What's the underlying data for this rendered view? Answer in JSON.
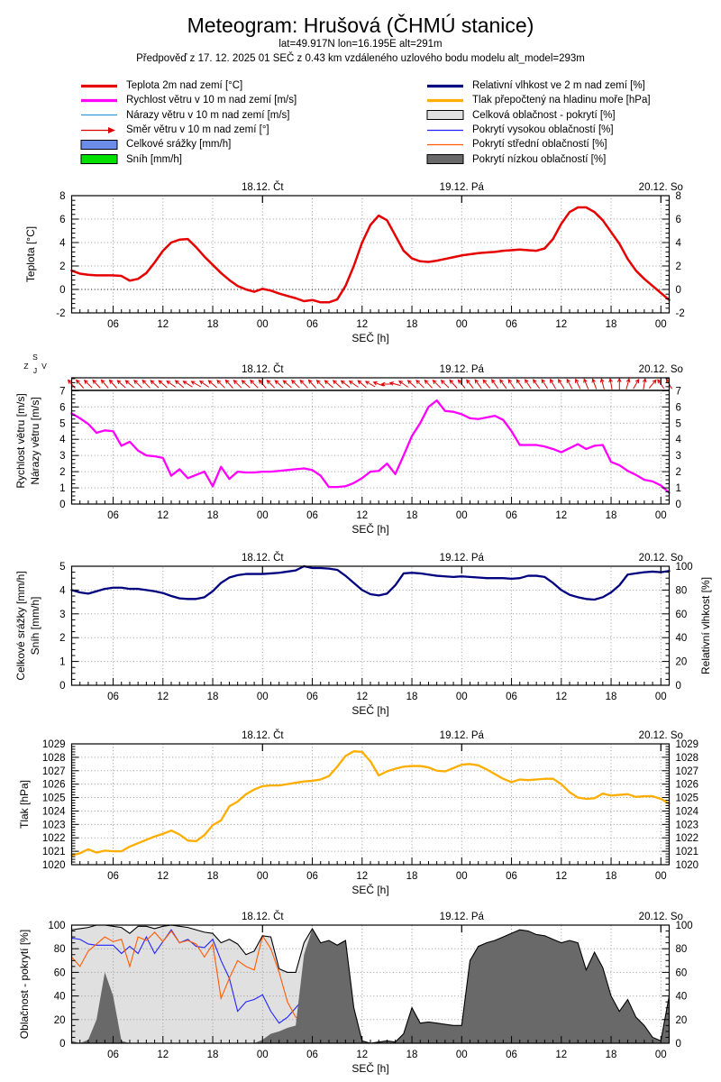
{
  "header": {
    "title": "Meteogram: Hrušová (ČHMÚ stanice)",
    "subtitle1": "lat=49.917N lon=16.195E alt=291m",
    "subtitle2": "Předpověď z 17. 12. 2025 01 SEČ z 0.43 km vzdáleného uzlového bodu modelu alt_model=293m"
  },
  "legend": {
    "left": [
      {
        "label": "Teplota 2m nad zemí [°C]",
        "swatch": "line",
        "color": "#e60000",
        "thick": true
      },
      {
        "label": "Rychlost větru v 10 m nad zemí [m/s]",
        "swatch": "line",
        "color": "#ff00ff",
        "thick": true
      },
      {
        "label": "Nárazy větru v 10 m nad zemí [m/s]",
        "swatch": "line",
        "color": "#3399dd",
        "thick": false
      },
      {
        "label": "Směr větru v 10 m nad zemí [°]",
        "swatch": "arrow",
        "color": "#dd0000"
      },
      {
        "label": "Celkové srážky [mm/h]",
        "swatch": "box",
        "color": "#6b8ce8"
      },
      {
        "label": "Sníh [mm/h]",
        "swatch": "box",
        "color": "#00e000"
      }
    ],
    "right": [
      {
        "label": "Relativní vlhkost ve 2 m nad zemí [%]",
        "swatch": "line",
        "color": "#000080",
        "thick": true
      },
      {
        "label": "Tlak přepočtený na hladinu moře [hPa]",
        "swatch": "line",
        "color": "#ffae00",
        "thick": true
      },
      {
        "label": "Celková oblačnost - pokrytí [%]",
        "swatch": "box",
        "color": "#e0e0e0"
      },
      {
        "label": "Pokrytí vysokou oblačností [%]",
        "swatch": "line",
        "color": "#2222ff",
        "thick": false
      },
      {
        "label": "Pokrytí střední oblačností [%]",
        "swatch": "line",
        "color": "#ff5a00",
        "thick": false
      },
      {
        "label": "Pokrytí nízkou oblačností [%]",
        "swatch": "box",
        "color": "#696969"
      }
    ]
  },
  "chart_data": {
    "x_axis": {
      "label": "SEČ [h]",
      "description": "hours since 17.12.2025 00:00 SEČ, hourly data from t=1 (01h 17.12.) to t=73 (01h 20.12.)",
      "start_t": 1,
      "end_t": 73,
      "step_hours": 1,
      "major_tick_every_hours": 6,
      "tick_labels": [
        "06",
        "12",
        "18",
        "00",
        "06",
        "12",
        "18",
        "00",
        "06",
        "12",
        "18",
        "00"
      ],
      "day_labels": [
        {
          "label": "18.12. Čt",
          "t": 24
        },
        {
          "label": "19.12. Pá",
          "t": 48
        },
        {
          "label": "20.12. So",
          "t": 72
        }
      ]
    },
    "charts": [
      {
        "id": "temperature",
        "type": "line",
        "ylabel": "Teplota [°C]",
        "ylim": [
          -2,
          8
        ],
        "yticks": [
          -2,
          0,
          2,
          4,
          6,
          8
        ],
        "minor_step": 0.4,
        "zero_line": true,
        "grid": true,
        "series": [
          {
            "name": "Teplota 2m nad zemí [°C]",
            "color": "#e60000",
            "width": 2.5,
            "values": [
              1.6,
              1.35,
              1.25,
              1.2,
              1.2,
              1.2,
              1.15,
              0.75,
              0.9,
              1.4,
              2.3,
              3.3,
              4.0,
              4.25,
              4.3,
              3.6,
              2.8,
              2.1,
              1.4,
              0.8,
              0.3,
              0.0,
              -0.2,
              0.05,
              -0.1,
              -0.35,
              -0.55,
              -0.75,
              -1.0,
              -0.9,
              -1.1,
              -1.1,
              -0.85,
              0.3,
              2.0,
              4.0,
              5.5,
              6.3,
              5.9,
              4.6,
              3.3,
              2.65,
              2.4,
              2.35,
              2.45,
              2.6,
              2.75,
              2.9,
              3.0,
              3.1,
              3.15,
              3.2,
              3.3,
              3.35,
              3.4,
              3.35,
              3.3,
              3.5,
              4.3,
              5.6,
              6.6,
              7.0,
              7.0,
              6.6,
              5.9,
              4.9,
              3.9,
              2.6,
              1.6,
              0.9,
              0.3,
              -0.3,
              -0.9
            ]
          }
        ]
      },
      {
        "id": "wind",
        "type": "line",
        "ylabel": "Rychlost větru [m/s]",
        "ylabel2": "Nárazy větru [m/s]",
        "ylim": [
          0,
          7.8
        ],
        "yticks": [
          0,
          1,
          2,
          3,
          4,
          5,
          6,
          7
        ],
        "minor_step": 0.25,
        "separator_y": 7,
        "grid": true,
        "compass": {
          "n": "S",
          "e": "V",
          "s": "J",
          "w": "Z"
        },
        "series": [
          {
            "name": "Rychlost větru v 10 m nad zemí [m/s]",
            "color": "#ff00ff",
            "width": 2.3,
            "values": [
              5.6,
              5.3,
              4.95,
              4.4,
              4.55,
              4.5,
              3.6,
              3.85,
              3.3,
              3.0,
              2.95,
              2.85,
              1.75,
              2.15,
              1.6,
              1.8,
              2.0,
              1.1,
              2.3,
              1.55,
              2.0,
              1.95,
              1.95,
              2.0,
              2.0,
              2.05,
              2.1,
              2.15,
              2.2,
              2.1,
              1.75,
              1.05,
              1.05,
              1.1,
              1.3,
              1.6,
              2.0,
              2.05,
              2.5,
              1.85,
              3.0,
              4.2,
              5.0,
              6.0,
              6.4,
              5.75,
              5.7,
              5.55,
              5.3,
              5.25,
              5.35,
              5.45,
              5.2,
              4.5,
              3.65,
              3.65,
              3.65,
              3.55,
              3.4,
              3.2,
              3.45,
              3.7,
              3.4,
              3.6,
              3.65,
              2.6,
              2.4,
              2.05,
              1.8,
              1.5,
              1.4,
              1.15,
              0.7
            ]
          }
        ],
        "arrows": {
          "name": "Směr větru v 10 m nad zemí [°]",
          "color": "#dd0000",
          "angles_deg_cw_from_north": [
            -40,
            -42,
            -45,
            -43,
            -40,
            -42,
            -48,
            -50,
            -46,
            -44,
            -47,
            -50,
            -55,
            -50,
            -58,
            -60,
            -55,
            -50,
            -45,
            -42,
            -45,
            -48,
            -44,
            -42,
            -45,
            -48,
            -50,
            -46,
            -44,
            -42,
            -45,
            -50,
            -48,
            -52,
            -55,
            -50,
            -60,
            -70,
            -90,
            -75,
            -55,
            -48,
            -45,
            -44,
            -46,
            -45,
            -42,
            -40,
            -38,
            -36,
            -38,
            -35,
            -36,
            -34,
            -35,
            -33,
            -35,
            -32,
            -30,
            -32,
            -28,
            -25,
            -22,
            -20,
            -15,
            -10,
            0,
            15,
            30,
            10,
            40,
            -35,
            -30
          ]
        }
      },
      {
        "id": "precip-humidity",
        "type": "line",
        "ylabel": "Celkové srážky [mm/h]",
        "ylabel2": "Sníh [mm/h]",
        "ylim": [
          0,
          5
        ],
        "yticks": [
          0,
          1,
          2,
          3,
          4,
          5
        ],
        "minor_step": 0.25,
        "y2label": "Relativní vlhkost [%]",
        "y2lim": [
          0,
          100
        ],
        "y2ticks": [
          0,
          20,
          40,
          60,
          80,
          100
        ],
        "minor2_step": 5,
        "grid": true,
        "precip_note": "no precipitation / snow bars visible (0 mm/h for all hours)",
        "series": [
          {
            "name": "Relativní vlhkost ve 2 m nad zemí [%]",
            "axis": "right",
            "color": "#000080",
            "width": 2.3,
            "values": [
              80,
              78,
              77,
              79,
              81,
              82,
              82,
              81,
              81,
              80,
              79,
              77.5,
              75,
              73,
              72.5,
              72.5,
              74,
              79,
              86,
              90.5,
              92.5,
              93.5,
              93.5,
              93.5,
              94,
              94.5,
              95.5,
              96.5,
              100,
              98.5,
              98.5,
              98,
              97,
              92,
              86,
              80,
              76.5,
              75.5,
              77,
              84,
              94,
              94.5,
              94,
              93,
              92,
              91.5,
              91,
              91.5,
              91,
              90.5,
              90,
              90,
              90,
              89.5,
              90,
              92,
              92,
              91,
              86,
              80,
              76,
              74,
              72.5,
              72,
              74,
              78,
              84,
              93,
              94,
              95,
              95.5,
              95,
              96
            ]
          }
        ]
      },
      {
        "id": "pressure",
        "type": "line",
        "ylabel": "Tlak [hPa]",
        "ylim": [
          1020,
          1029
        ],
        "yticks": [
          1020,
          1021,
          1022,
          1023,
          1024,
          1025,
          1026,
          1027,
          1028,
          1029
        ],
        "minor_step": 0.2,
        "grid": true,
        "mirror_right_labels": true,
        "series": [
          {
            "name": "Tlak přepočtený na hladinu moře [hPa]",
            "color": "#ffae00",
            "width": 2.3,
            "values": [
              1020.7,
              1020.85,
              1021.15,
              1020.9,
              1021.05,
              1021.0,
              1021.0,
              1021.35,
              1021.6,
              1021.85,
              1022.1,
              1022.3,
              1022.55,
              1022.25,
              1021.8,
              1021.75,
              1022.2,
              1022.95,
              1023.3,
              1024.35,
              1024.7,
              1025.25,
              1025.6,
              1025.85,
              1025.9,
              1025.9,
              1026.0,
              1026.1,
              1026.2,
              1026.25,
              1026.35,
              1026.6,
              1027.3,
              1028.1,
              1028.45,
              1028.4,
              1027.7,
              1026.65,
              1026.95,
              1027.15,
              1027.3,
              1027.35,
              1027.35,
              1027.25,
              1027.0,
              1026.95,
              1027.2,
              1027.45,
              1027.5,
              1027.4,
              1027.1,
              1026.75,
              1026.4,
              1026.15,
              1026.35,
              1026.3,
              1026.35,
              1026.4,
              1026.4,
              1026.0,
              1025.4,
              1025.0,
              1024.9,
              1024.95,
              1025.3,
              1025.15,
              1025.2,
              1025.25,
              1025.05,
              1025.1,
              1025.1,
              1024.9,
              1024.55
            ]
          }
        ]
      },
      {
        "id": "cloud-cover",
        "type": "area",
        "ylabel": "Oblačnost - pokrytí [%]",
        "ylim": [
          0,
          100
        ],
        "yticks": [
          0,
          20,
          40,
          60,
          80,
          100
        ],
        "minor_step": 5,
        "grid": true,
        "areas": [
          {
            "name": "Celková oblačnost - pokrytí [%]",
            "fill": "#e0e0e0",
            "outline": "#000000",
            "values": [
              96,
              97,
              98,
              100,
              100,
              99,
              98,
              93,
              99,
              99,
              97,
              99,
              100,
              99,
              98,
              96,
              94,
              93,
              85,
              88,
              84,
              75,
              78,
              91,
              90,
              63,
              60,
              60,
              85,
              97,
              85,
              87,
              83,
              87,
              30,
              2,
              0,
              1,
              2,
              1,
              8,
              30,
              17,
              18,
              17,
              16,
              15,
              15,
              70,
              82,
              85,
              87,
              90,
              93,
              96,
              95,
              92,
              91,
              88,
              85,
              87,
              85,
              62,
              77,
              64,
              40,
              27,
              37,
              22,
              15,
              5,
              2,
              40
            ]
          },
          {
            "name": "Pokrytí nízkou oblačností [%]",
            "fill": "#696969",
            "values": [
              2,
              0,
              3,
              20,
              60,
              40,
              2,
              0,
              0,
              0,
              0,
              0,
              0,
              0,
              0,
              0,
              0,
              0,
              0,
              0,
              0,
              0,
              0,
              3,
              8,
              10,
              13,
              15,
              75,
              97,
              85,
              87,
              83,
              87,
              30,
              2,
              0,
              1,
              2,
              1,
              8,
              30,
              17,
              18,
              17,
              16,
              15,
              15,
              70,
              82,
              85,
              87,
              90,
              93,
              96,
              95,
              92,
              91,
              88,
              85,
              87,
              85,
              62,
              77,
              64,
              40,
              27,
              37,
              22,
              15,
              5,
              2,
              40
            ]
          }
        ],
        "lines": [
          {
            "name": "Pokrytí vysokou oblačností [%]",
            "color": "#2222ff",
            "width": 1.1,
            "values": [
              89,
              88,
              84,
              83,
              83,
              83,
              76,
              82,
              76,
              90,
              76,
              86,
              96,
              85,
              88,
              82,
              81,
              88,
              70,
              55,
              27,
              35,
              37,
              41,
              27,
              17,
              22,
              30,
              38,
              38,
              18,
              2,
              1,
              1,
              0,
              0,
              0,
              0,
              0,
              0,
              0,
              0,
              0,
              0,
              0,
              0,
              0,
              0,
              0,
              0,
              0,
              0,
              0,
              0,
              0,
              0,
              0,
              0,
              0,
              0,
              0,
              0,
              0,
              0,
              0,
              0,
              0,
              0,
              0,
              0,
              0,
              0,
              0
            ]
          },
          {
            "name": "Pokrytí střední oblačností [%]",
            "color": "#ff5a00",
            "width": 1.1,
            "values": [
              73,
              65,
              78,
              84,
              90,
              86,
              88,
              65,
              90,
              87,
              94,
              86,
              95,
              85,
              87,
              84,
              73,
              84,
              38,
              55,
              70,
              65,
              62,
              91,
              80,
              60,
              35,
              22,
              20,
              18,
              5,
              1,
              0,
              0,
              0,
              0,
              0,
              0,
              0,
              0,
              0,
              0,
              0,
              0,
              0,
              0,
              0,
              0,
              0,
              0,
              0,
              0,
              0,
              0,
              0,
              0,
              0,
              0,
              0,
              0,
              0,
              0,
              0,
              0,
              0,
              0,
              0,
              0,
              0,
              0,
              0,
              0,
              0
            ]
          }
        ]
      }
    ]
  }
}
